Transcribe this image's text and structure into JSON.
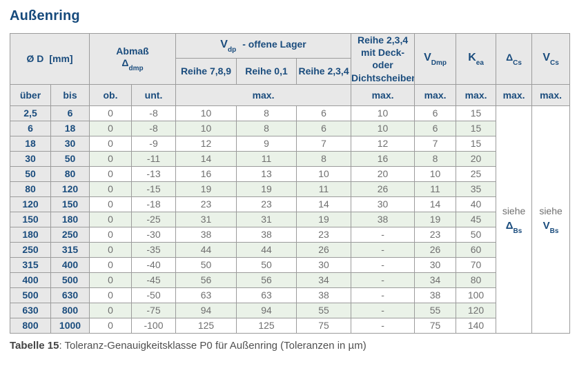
{
  "page_title": "Außenring",
  "caption": {
    "label": "Tabelle 15",
    "text": ": Toleranz-Genauigkeitsklasse P0 für Außenring (Toleranzen in µm)"
  },
  "colors": {
    "heading_blue": "#164a7c",
    "header_text_blue": "#1a4c7d",
    "header_bg_gray": "#e8e8e8",
    "row_green": "#eaf2e8",
    "border_gray": "#9b9b9b",
    "value_text_gray": "#6f6f6f"
  },
  "table": {
    "header": {
      "diameter": {
        "symbol": "Ø D",
        "unit": "[mm]"
      },
      "abmass": {
        "line1": "Abmaß",
        "symbol": "Δ",
        "sub": "dmp"
      },
      "vdp": {
        "main": "V",
        "sub": "dp",
        "rest": "-  offene Lager"
      },
      "reihe_cols": [
        "Reihe 7,8,9",
        "Reihe 0,1",
        "Reihe 2,3,4"
      ],
      "deck": {
        "line1": "Reihe 2,3,4",
        "line2": "mit Deck- oder",
        "line3": "Dichtscheiben"
      },
      "vdmp": {
        "main": "V",
        "sub": "Dmp"
      },
      "kea": {
        "main": "K",
        "sub": "ea"
      },
      "dcs": {
        "main": "Δ",
        "sub": "Cs"
      },
      "vcs": {
        "main": "V",
        "sub": "Cs"
      },
      "row3": {
        "ueber": "über",
        "bis": "bis",
        "ob": "ob.",
        "unt": "unt.",
        "max": "max."
      }
    },
    "rows": [
      [
        "2,5",
        "6",
        "0",
        "-8",
        "10",
        "8",
        "6",
        "10",
        "6",
        "15"
      ],
      [
        "6",
        "18",
        "0",
        "-8",
        "10",
        "8",
        "6",
        "10",
        "6",
        "15"
      ],
      [
        "18",
        "30",
        "0",
        "-9",
        "12",
        "9",
        "7",
        "12",
        "7",
        "15"
      ],
      [
        "30",
        "50",
        "0",
        "-11",
        "14",
        "11",
        "8",
        "16",
        "8",
        "20"
      ],
      [
        "50",
        "80",
        "0",
        "-13",
        "16",
        "13",
        "10",
        "20",
        "10",
        "25"
      ],
      [
        "80",
        "120",
        "0",
        "-15",
        "19",
        "19",
        "11",
        "26",
        "11",
        "35"
      ],
      [
        "120",
        "150",
        "0",
        "-18",
        "23",
        "23",
        "14",
        "30",
        "14",
        "40"
      ],
      [
        "150",
        "180",
        "0",
        "-25",
        "31",
        "31",
        "19",
        "38",
        "19",
        "45"
      ],
      [
        "180",
        "250",
        "0",
        "-30",
        "38",
        "38",
        "23",
        "-",
        "23",
        "50"
      ],
      [
        "250",
        "315",
        "0",
        "-35",
        "44",
        "44",
        "26",
        "-",
        "26",
        "60"
      ],
      [
        "315",
        "400",
        "0",
        "-40",
        "50",
        "50",
        "30",
        "-",
        "30",
        "70"
      ],
      [
        "400",
        "500",
        "0",
        "-45",
        "56",
        "56",
        "34",
        "-",
        "34",
        "80"
      ],
      [
        "500",
        "630",
        "0",
        "-50",
        "63",
        "63",
        "38",
        "-",
        "38",
        "100"
      ],
      [
        "630",
        "800",
        "0",
        "-75",
        "94",
        "94",
        "55",
        "-",
        "55",
        "120"
      ],
      [
        "800",
        "1000",
        "0",
        "-100",
        "125",
        "125",
        "75",
        "-",
        "75",
        "140"
      ]
    ],
    "siehe": [
      {
        "word": "siehe",
        "symbol": "Δ",
        "sub": "Bs"
      },
      {
        "word": "siehe",
        "symbol": "V",
        "sub": "Bs"
      }
    ]
  }
}
